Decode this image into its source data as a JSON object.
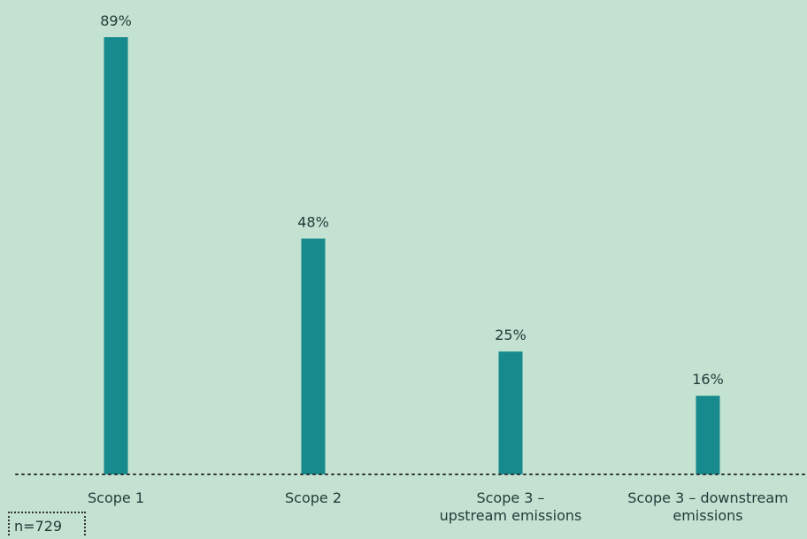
{
  "chart_data": {
    "type": "bar",
    "categories": [
      "Scope 1",
      "Scope 2",
      "Scope 3 – upstream emissions",
      "Scope 3 – downstream emissions"
    ],
    "category_lines": [
      [
        "Scope 1"
      ],
      [
        "Scope 2"
      ],
      [
        "Scope 3 –",
        "upstream emissions"
      ],
      [
        "Scope 3 – downstream",
        "emissions"
      ]
    ],
    "values": [
      89,
      48,
      25,
      16
    ],
    "value_labels": [
      "89%",
      "48%",
      "25%",
      "16%"
    ],
    "unit": "%",
    "ylim": [
      0,
      89
    ],
    "grid": false,
    "bar_color": "#168a8c",
    "baseline_style": "dotted"
  },
  "footnote": {
    "sample_size": "n=729"
  },
  "colors": {
    "background": "#c4e2d2",
    "bar": "#168a8c",
    "text": "#1f3b38"
  }
}
